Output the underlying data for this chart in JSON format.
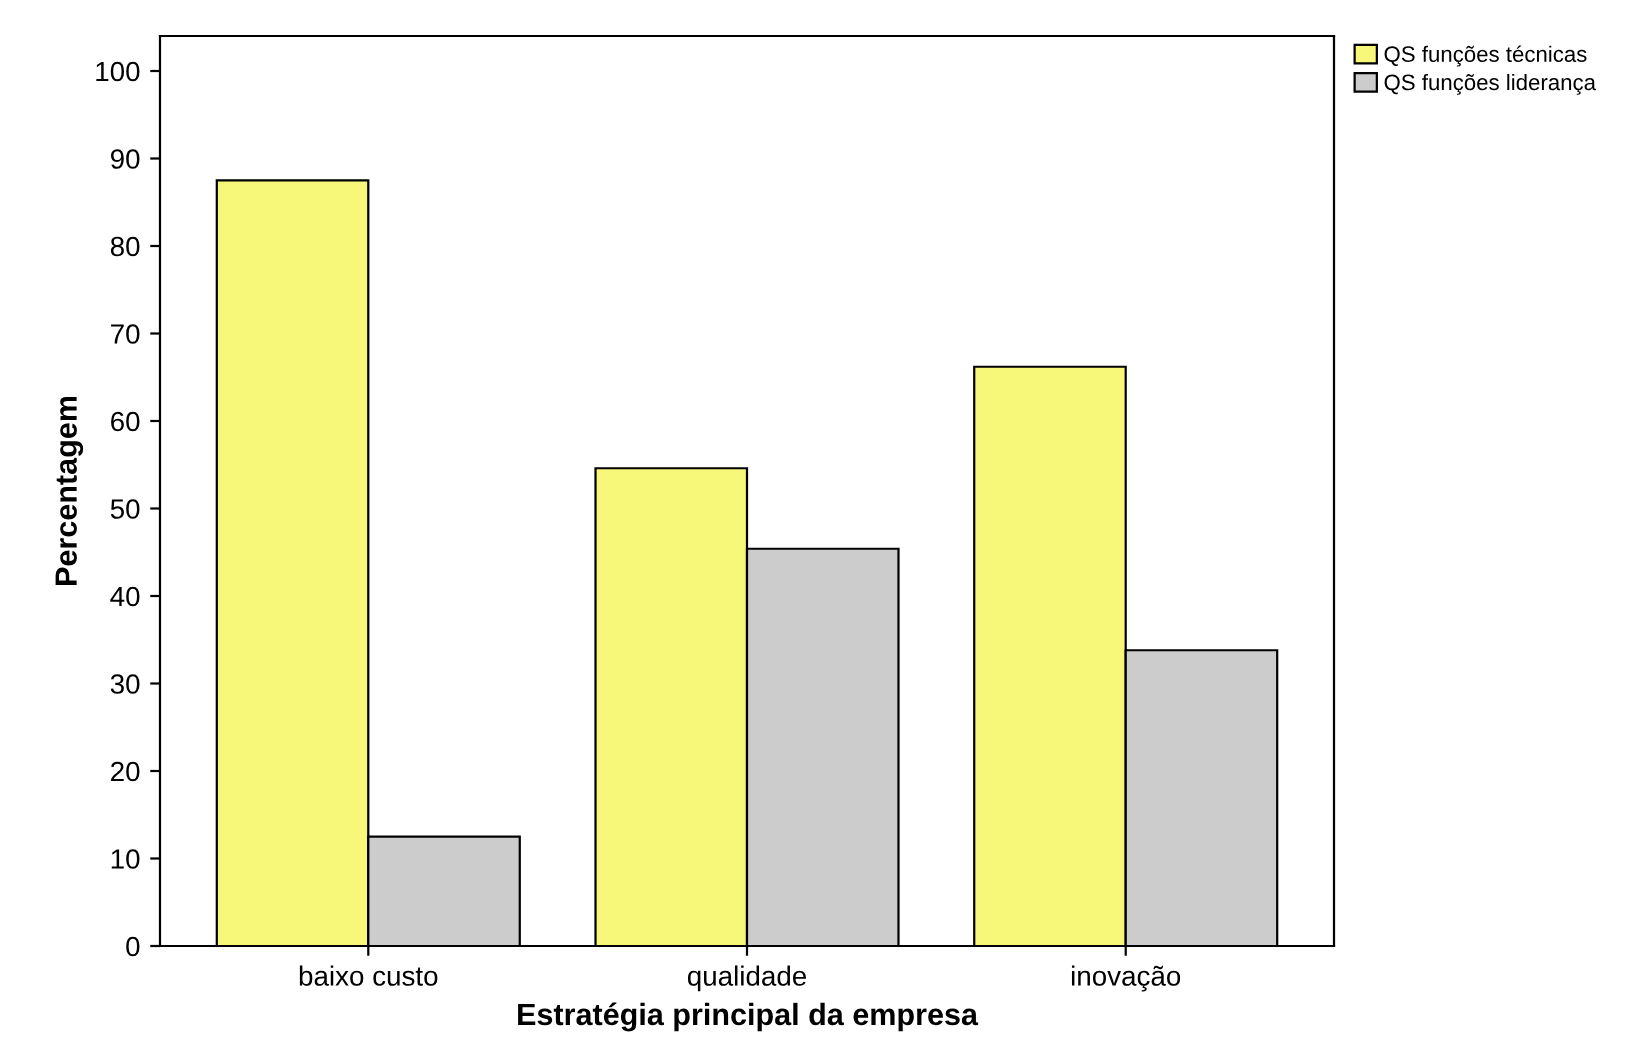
{
  "chart_data": {
    "type": "bar",
    "xlabel": "Estratégia principal da empresa",
    "ylabel": "Percentagem",
    "categories": [
      "baixo custo",
      "qualidade",
      "inovação"
    ],
    "series": [
      {
        "name": "QS funções técnicas",
        "color": "#f7f77a",
        "values": [
          87.5,
          54.6,
          66.2
        ]
      },
      {
        "name": "QS funções liderança",
        "color": "#cccccc",
        "values": [
          12.5,
          45.4,
          33.8
        ]
      }
    ],
    "ylim": [
      0,
      104
    ],
    "yticks": [
      0,
      10,
      20,
      30,
      40,
      50,
      60,
      70,
      80,
      90,
      100
    ],
    "grid": false,
    "legend": "top right"
  }
}
